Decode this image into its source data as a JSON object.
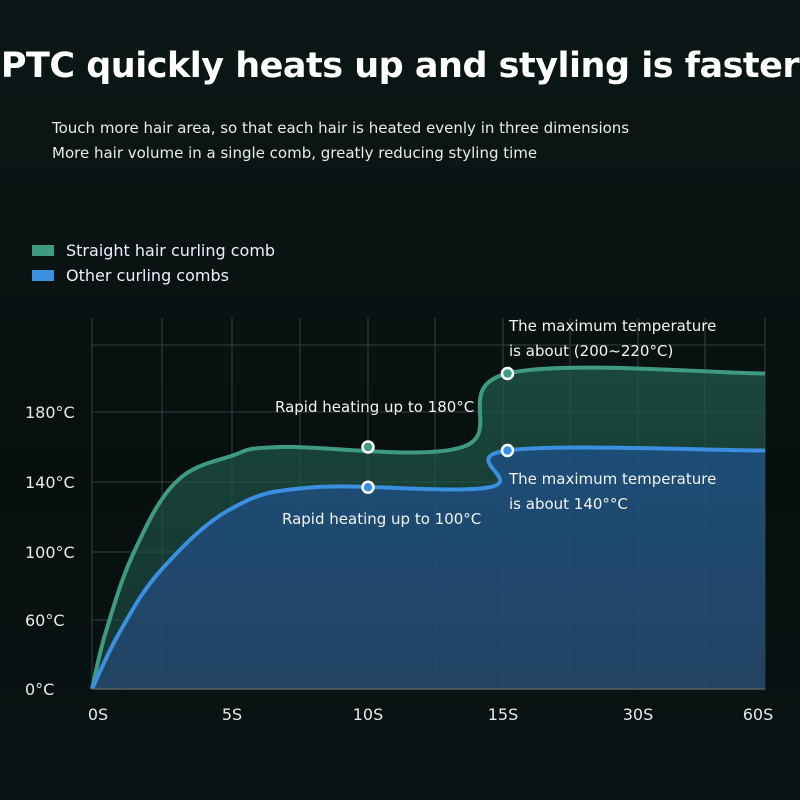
{
  "title": "PTC quickly heats up and styling is faster",
  "subtitle_lines": [
    "Touch more hair area, so that each hair is heated evenly in three dimensions",
    "More hair volume in a single comb, greatly reducing styling time"
  ],
  "chart_data": {
    "type": "area",
    "x_ticks": [
      "0S",
      "5S",
      "10S",
      "15S",
      "30S",
      "60S"
    ],
    "x_tick_values": [
      0,
      5,
      10,
      15,
      30,
      60
    ],
    "y_ticks": [
      "0°C",
      "60°C",
      "100°C",
      "140°C",
      "180°C"
    ],
    "y_tick_values": [
      0,
      60,
      100,
      140,
      180
    ],
    "grid": true,
    "legend_placement": "top-left",
    "series": [
      {
        "name": "Straight hair curling comb",
        "color": "#3f9a82",
        "points": [
          [
            0,
            0
          ],
          [
            0.5,
            50
          ],
          [
            1.5,
            100
          ],
          [
            3,
            140
          ],
          [
            5,
            155
          ],
          [
            6.8,
            160
          ],
          [
            13.5,
            160
          ],
          [
            15.5,
            202
          ],
          [
            60,
            202
          ]
        ],
        "marker": [
          [
            10,
            160
          ],
          [
            15.5,
            202
          ]
        ]
      },
      {
        "name": "Other curling combs",
        "color": "#3b8fe0",
        "points": [
          [
            0,
            0
          ],
          [
            1,
            50
          ],
          [
            2.5,
            90
          ],
          [
            5,
            125
          ],
          [
            8,
            137
          ],
          [
            14.5,
            137
          ],
          [
            15.5,
            158
          ],
          [
            60,
            158
          ]
        ],
        "marker": [
          [
            10,
            137
          ],
          [
            15.5,
            158
          ]
        ]
      }
    ],
    "annotations": [
      {
        "text": "Rapid heating up to 180°C"
      },
      {
        "text": "Rapid heating up to 100°C"
      },
      {
        "line1": "The maximum temperature",
        "line2": "is about (200~220°C)"
      },
      {
        "line1": "The maximum temperature",
        "line2": "is about 140°°C"
      }
    ]
  }
}
